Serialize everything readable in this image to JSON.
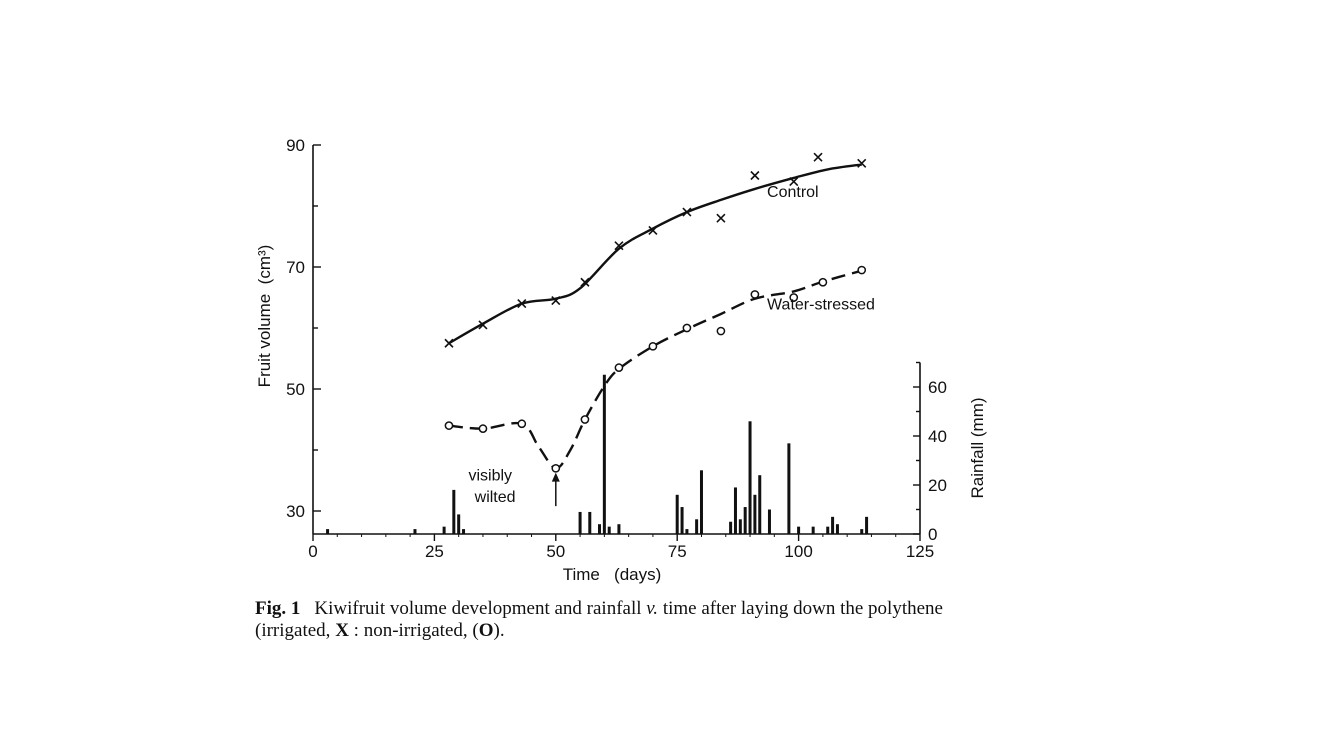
{
  "chart_data": {
    "type": "line",
    "title": "",
    "xlabel": "Time   (days)",
    "ylabel": "Fruit volume  (cm³)",
    "y2label": "Rainfall (mm)",
    "xlim": [
      0,
      125
    ],
    "ylim": [
      26,
      90
    ],
    "y2lim": [
      0,
      70
    ],
    "x_ticks": [
      0,
      25,
      50,
      75,
      100,
      125
    ],
    "y_ticks": [
      30,
      50,
      70,
      90
    ],
    "y2_ticks": [
      0,
      20,
      40,
      60
    ],
    "grid": false,
    "series": [
      {
        "name": "Control",
        "marker": "x",
        "line": "solid",
        "points": [
          [
            28,
            57.5
          ],
          [
            35,
            60.5
          ],
          [
            43,
            64
          ],
          [
            50,
            64.5
          ],
          [
            56,
            67.5
          ],
          [
            63,
            73.5
          ],
          [
            70,
            76
          ],
          [
            77,
            79
          ],
          [
            84,
            78
          ],
          [
            91,
            85
          ],
          [
            99,
            84
          ],
          [
            104,
            88
          ],
          [
            113,
            87
          ]
        ],
        "curve": [
          [
            28,
            57.5
          ],
          [
            35,
            60.7
          ],
          [
            43,
            64
          ],
          [
            50,
            64.8
          ],
          [
            55,
            66.5
          ],
          [
            63,
            73
          ],
          [
            70,
            76.3
          ],
          [
            77,
            79
          ],
          [
            84,
            81
          ],
          [
            91,
            82.8
          ],
          [
            99,
            84.6
          ],
          [
            106,
            86
          ],
          [
            113,
            86.8
          ]
        ]
      },
      {
        "name": "Water-stressed",
        "marker": "o",
        "line": "dashed",
        "points": [
          [
            28,
            44
          ],
          [
            35,
            43.5
          ],
          [
            43,
            44.3
          ],
          [
            50,
            37
          ],
          [
            56,
            45
          ],
          [
            63,
            53.5
          ],
          [
            70,
            57
          ],
          [
            77,
            60
          ],
          [
            84,
            59.5
          ],
          [
            91,
            65.5
          ],
          [
            99,
            65
          ],
          [
            105,
            67.5
          ],
          [
            113,
            69.5
          ]
        ],
        "curve": [
          [
            28,
            44
          ],
          [
            35,
            43.5
          ],
          [
            43,
            44.3
          ],
          [
            46.5,
            40.5
          ],
          [
            50,
            37
          ],
          [
            53,
            40
          ],
          [
            56,
            45
          ],
          [
            60,
            50.5
          ],
          [
            63,
            53.3
          ],
          [
            70,
            57
          ],
          [
            77,
            59.8
          ],
          [
            84,
            62.3
          ],
          [
            91,
            64.8
          ],
          [
            99,
            66
          ],
          [
            105,
            67.6
          ],
          [
            113,
            69.4
          ]
        ]
      }
    ],
    "rainfall": {
      "name": "Rainfall",
      "type": "bar",
      "days": [
        3,
        21,
        27,
        29,
        30,
        31,
        55,
        57,
        59,
        60,
        61,
        63,
        75,
        76,
        77,
        79,
        80,
        86,
        87,
        88,
        89,
        90,
        91,
        92,
        94,
        98,
        100,
        103,
        106,
        107,
        108,
        113,
        114
      ],
      "values": [
        2,
        2,
        3,
        18,
        8,
        2,
        9,
        9,
        4,
        65,
        3,
        4,
        16,
        11,
        2,
        6,
        26,
        5,
        19,
        6,
        11,
        46,
        16,
        24,
        10,
        37,
        3,
        3,
        3,
        7,
        4,
        2,
        7
      ]
    },
    "annotations": [
      {
        "text": "Control",
        "x": 93.5,
        "y": 81.5
      },
      {
        "text": "Water-stressed",
        "x": 93.5,
        "y": 63
      },
      {
        "text": "visibly",
        "x": 36.5,
        "y": 35
      },
      {
        "text": "wilted",
        "x": 37.5,
        "y": 31.5
      }
    ]
  },
  "caption": {
    "label": "Fig. 1",
    "text_before": "Kiwifruit volume development and rainfall ",
    "italic_v": "v.",
    "text_middle": " time after laying down the polythene (irrigated, ",
    "bold_x": "X",
    "text_middle2": " : non-irrigated, (",
    "bold_o": "O",
    "text_after": ")."
  }
}
